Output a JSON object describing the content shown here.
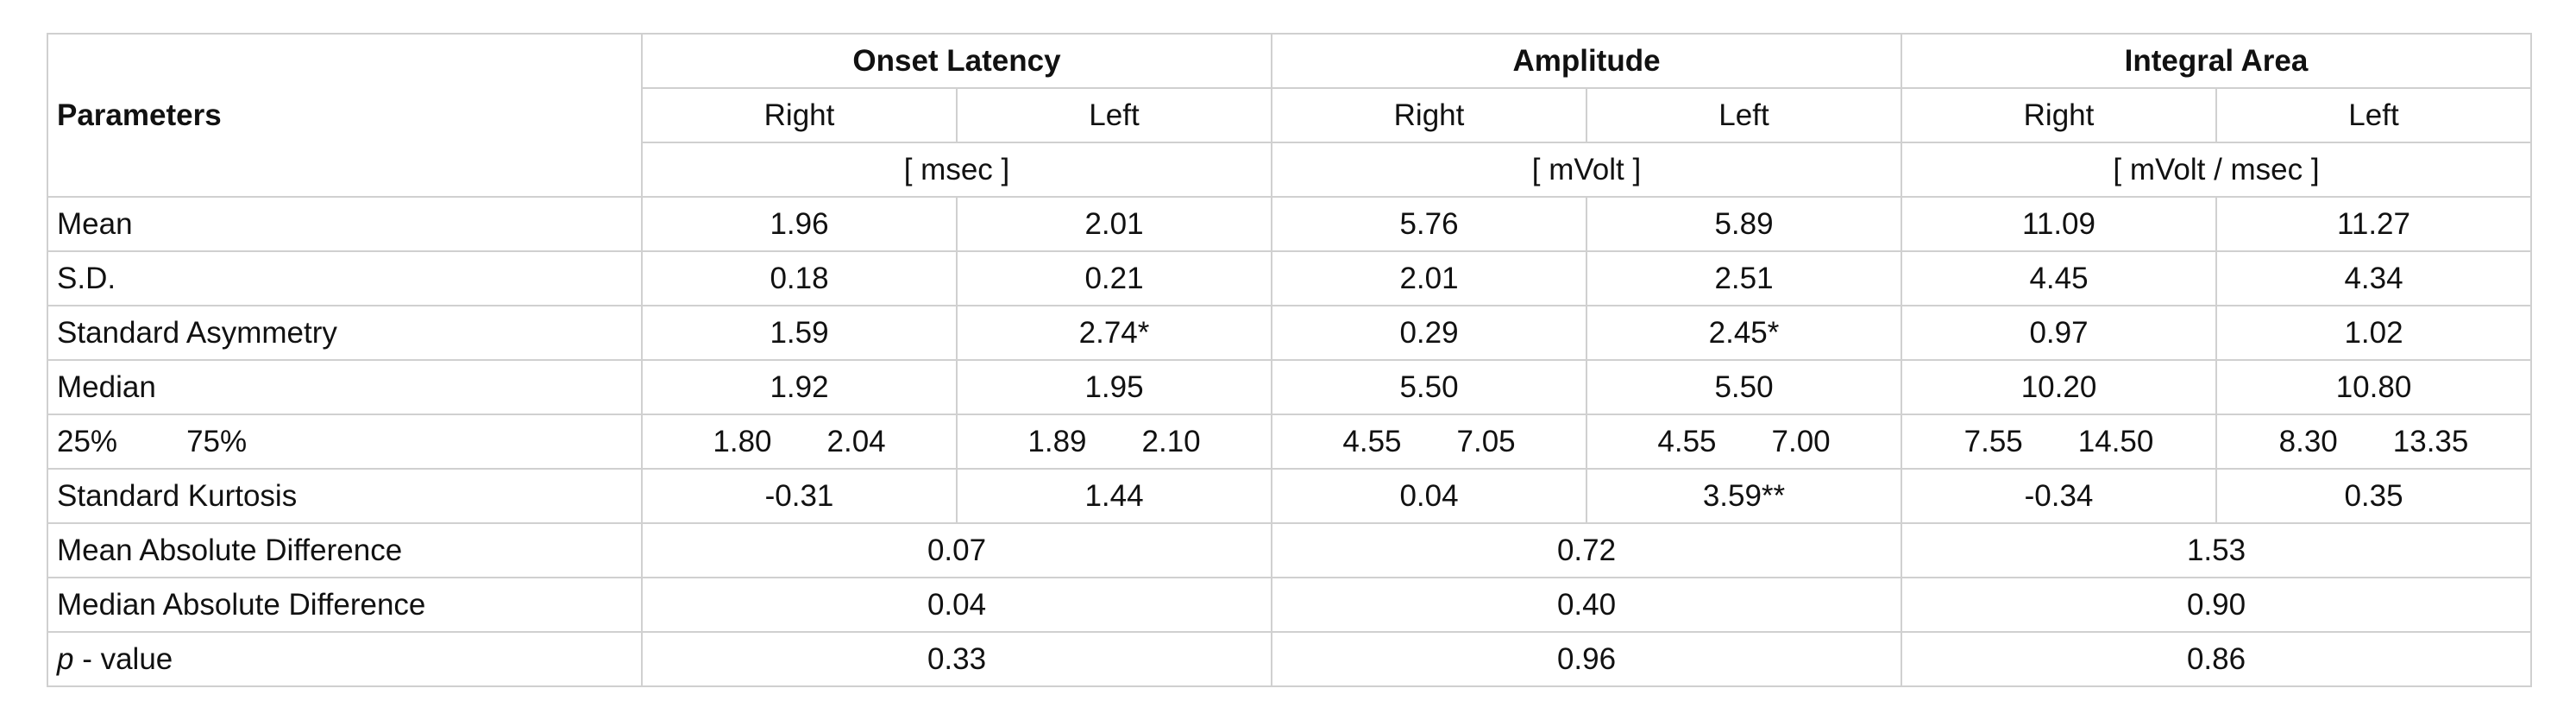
{
  "table": {
    "header": {
      "parameters": "Parameters",
      "groups": [
        {
          "name": "Onset Latency",
          "sides": [
            "Right",
            "Left"
          ],
          "unit": "[ msec ]"
        },
        {
          "name": "Amplitude",
          "sides": [
            "Right",
            "Left"
          ],
          "unit": "[ mVolt ]"
        },
        {
          "name": "Integral Area",
          "sides": [
            "Right",
            "Left"
          ],
          "unit": "[ mVolt / msec ]"
        }
      ]
    },
    "rows": [
      {
        "label": "Mean",
        "cells": [
          "1.96",
          "2.01",
          "5.76",
          "5.89",
          "11.09",
          "11.27"
        ]
      },
      {
        "label": "S.D.",
        "cells": [
          "0.18",
          "0.21",
          "2.01",
          "2.51",
          "4.45",
          "4.34"
        ]
      },
      {
        "label": "Standard Asymmetry",
        "cells": [
          "1.59",
          "2.74*",
          "0.29",
          "2.45*",
          "0.97",
          "1.02"
        ]
      },
      {
        "label": "Median",
        "cells": [
          "1.92",
          "1.95",
          "5.50",
          "5.50",
          "10.20",
          "10.80"
        ]
      },
      {
        "label": [
          "25%",
          "75%"
        ],
        "cells": [
          [
            "1.80",
            "2.04"
          ],
          [
            "1.89",
            "2.10"
          ],
          [
            "4.55",
            "7.05"
          ],
          [
            "4.55",
            "7.00"
          ],
          [
            "7.55",
            "14.50"
          ],
          [
            "8.30",
            "13.35"
          ]
        ]
      },
      {
        "label": "Standard Kurtosis",
        "cells": [
          "-0.31",
          "1.44",
          "0.04",
          "3.59**",
          "-0.34",
          "0.35"
        ]
      }
    ],
    "merged_rows": [
      {
        "label": "Mean Absolute Difference",
        "cells": [
          "0.07",
          "0.72",
          "1.53"
        ]
      },
      {
        "label": "Median Absolute Difference",
        "cells": [
          "0.04",
          "0.40",
          "0.90"
        ]
      },
      {
        "italic_prefix": "p",
        "label": "- value",
        "cells": [
          "0.33",
          "0.96",
          "0.86"
        ]
      }
    ]
  }
}
